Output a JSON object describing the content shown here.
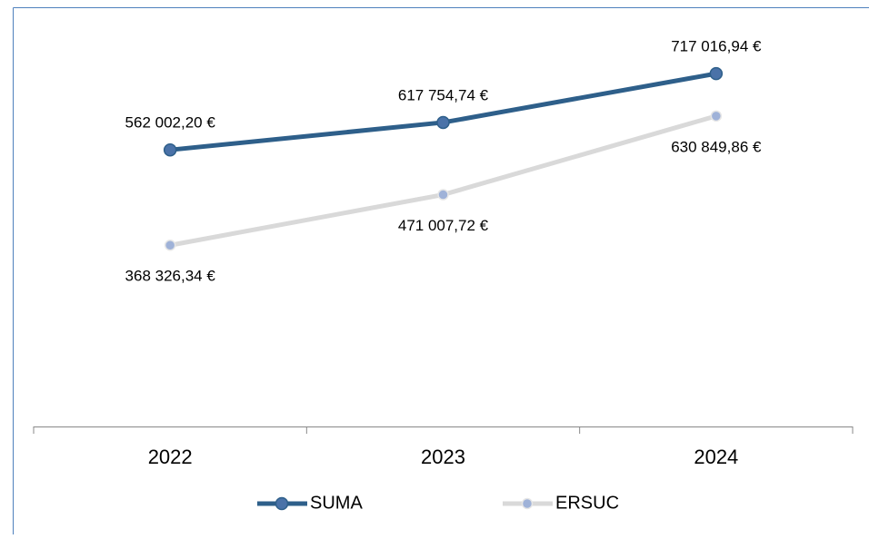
{
  "chart_data": {
    "type": "line",
    "categories": [
      "2022",
      "2023",
      "2024"
    ],
    "series": [
      {
        "name": "SUMA",
        "color": "#2e5f8a",
        "marker_color": "#4a72a8",
        "values": [
          562002.2,
          617754.74,
          717016.94
        ],
        "value_labels": [
          "562 002,20 €",
          "617 754,74 €",
          "717 016,94 €"
        ]
      },
      {
        "name": "ERSUC",
        "color": "#d9d9d9",
        "marker_color": "#9fb2d8",
        "values": [
          368326.34,
          471007.72,
          630849.86
        ],
        "value_labels": [
          "368 326,34 €",
          "471 007,72 €",
          "630 849,86 €"
        ]
      }
    ],
    "ylim": [
      0,
      850000
    ],
    "legend": "bottom"
  }
}
